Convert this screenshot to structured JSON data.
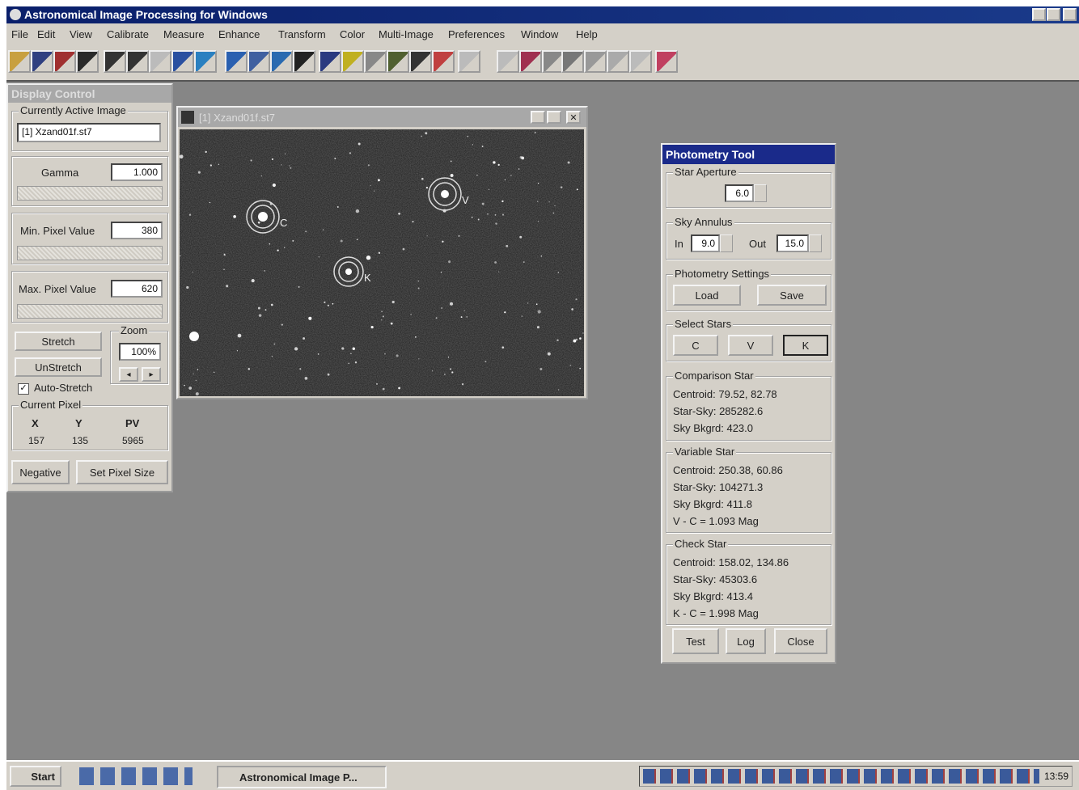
{
  "window": {
    "title": "Astronomical Image Processing for Windows"
  },
  "menu": [
    "File",
    "Edit",
    "View",
    "Calibrate",
    "Measure",
    "Enhance",
    "Transform",
    "Color",
    "Multi-Image",
    "Preferences",
    "Window",
    "Help"
  ],
  "display_control": {
    "title": "Display Control",
    "active_image_label": "Currently Active Image",
    "active_image": "[1] Xzand01f.st7",
    "gamma_label": "Gamma",
    "gamma": "1.000",
    "min_label": "Min. Pixel Value",
    "min": "380",
    "max_label": "Max. Pixel Value",
    "max": "620",
    "stretch": "Stretch",
    "unstretch": "UnStretch",
    "auto_stretch": "Auto-Stretch",
    "zoom_label": "Zoom",
    "zoom": "100%",
    "current_pixel_label": "Current Pixel",
    "pixel_headers": [
      "X",
      "Y",
      "PV"
    ],
    "pixel_values": [
      "157",
      "135",
      "5965"
    ],
    "negative": "Negative",
    "set_pixel_size": "Set Pixel Size"
  },
  "image_window": {
    "title": "[1] Xzand01f.st7",
    "markers": [
      "C",
      "V",
      "K"
    ]
  },
  "photometry": {
    "title": "Photometry Tool",
    "star_aperture_label": "Star Aperture",
    "star_aperture": "6.0",
    "sky_annulus_label": "Sky Annulus",
    "in_label": "In",
    "in": "9.0",
    "out_label": "Out",
    "out": "15.0",
    "settings_label": "Photometry Settings",
    "load": "Load",
    "save": "Save",
    "select_label": "Select Stars",
    "select_buttons": [
      "C",
      "V",
      "K"
    ],
    "comparison": {
      "label": "Comparison Star",
      "lines": [
        "Centroid: 79.52, 82.78",
        "Star-Sky: 285282.6",
        "Sky Bkgrd: 423.0"
      ]
    },
    "variable": {
      "label": "Variable Star",
      "lines": [
        "Centroid: 250.38, 60.86",
        "Star-Sky: 104271.3",
        "Sky Bkgrd: 411.8",
        "V - C = 1.093 Mag"
      ]
    },
    "check": {
      "label": "Check Star",
      "lines": [
        "Centroid: 158.02, 134.86",
        "Star-Sky: 45303.6",
        "Sky Bkgrd: 413.4",
        "K - C = 1.998 Mag"
      ]
    },
    "test": "Test",
    "log": "Log",
    "close": "Close"
  },
  "taskbar": {
    "start": "Start",
    "task": "Astronomical Image P...",
    "clock": "13:59"
  }
}
